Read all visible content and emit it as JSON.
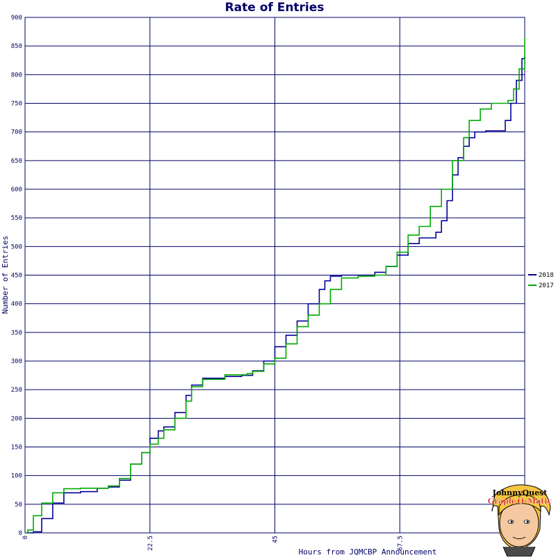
{
  "chart_data": {
    "type": "line",
    "title": "Rate of Entries",
    "xlabel": "Hours from JQMCBP Announcement",
    "ylabel": "Number of Entries",
    "xlim": [
      0,
      90
    ],
    "ylim": [
      0,
      900
    ],
    "x_ticks": [
      "0",
      "22.5",
      "45",
      "67.5",
      "90"
    ],
    "y_ticks": [
      "0",
      "50",
      "100",
      "150",
      "200",
      "250",
      "300",
      "350",
      "400",
      "450",
      "500",
      "550",
      "600",
      "650",
      "700",
      "750",
      "800",
      "850",
      "900"
    ],
    "grid": true,
    "legend_position": "right",
    "series": [
      {
        "name": "2018",
        "color": "#000099",
        "points": [
          [
            0,
            0
          ],
          [
            1.5,
            2
          ],
          [
            3,
            25
          ],
          [
            5,
            52
          ],
          [
            7,
            70
          ],
          [
            10,
            72
          ],
          [
            13,
            78
          ],
          [
            15,
            80
          ],
          [
            17,
            92
          ],
          [
            19,
            120
          ],
          [
            21,
            140
          ],
          [
            22.5,
            165
          ],
          [
            24,
            178
          ],
          [
            25,
            185
          ],
          [
            27,
            210
          ],
          [
            29,
            240
          ],
          [
            30,
            258
          ],
          [
            32,
            270
          ],
          [
            36,
            273
          ],
          [
            39,
            275
          ],
          [
            41,
            283
          ],
          [
            43,
            300
          ],
          [
            45,
            325
          ],
          [
            47,
            345
          ],
          [
            49,
            370
          ],
          [
            51,
            400
          ],
          [
            53,
            425
          ],
          [
            54,
            440
          ],
          [
            55,
            448
          ],
          [
            57,
            450
          ],
          [
            60,
            450
          ],
          [
            63,
            455
          ],
          [
            65,
            465
          ],
          [
            67,
            485
          ],
          [
            69,
            505
          ],
          [
            71,
            515
          ],
          [
            74,
            525
          ],
          [
            75,
            545
          ],
          [
            76,
            580
          ],
          [
            77,
            625
          ],
          [
            78,
            655
          ],
          [
            79,
            675
          ],
          [
            80,
            690
          ],
          [
            81,
            700
          ],
          [
            83,
            702
          ],
          [
            86,
            702
          ],
          [
            86.5,
            720
          ],
          [
            87.5,
            750
          ],
          [
            88.5,
            790
          ],
          [
            89.5,
            828
          ],
          [
            90,
            832
          ]
        ]
      },
      {
        "name": "2017",
        "color": "#00aa00",
        "points": [
          [
            0,
            0
          ],
          [
            0.5,
            5
          ],
          [
            1.5,
            30
          ],
          [
            3,
            52
          ],
          [
            5,
            70
          ],
          [
            7,
            77
          ],
          [
            10,
            78
          ],
          [
            13,
            78
          ],
          [
            15,
            82
          ],
          [
            17,
            95
          ],
          [
            19,
            120
          ],
          [
            21,
            140
          ],
          [
            22.5,
            155
          ],
          [
            24,
            165
          ],
          [
            25,
            180
          ],
          [
            27,
            200
          ],
          [
            29,
            230
          ],
          [
            30,
            255
          ],
          [
            32,
            268
          ],
          [
            36,
            276
          ],
          [
            40,
            278
          ],
          [
            41,
            282
          ],
          [
            43,
            295
          ],
          [
            45,
            305
          ],
          [
            47,
            330
          ],
          [
            49,
            360
          ],
          [
            51,
            380
          ],
          [
            53,
            400
          ],
          [
            55,
            425
          ],
          [
            57,
            445
          ],
          [
            60,
            448
          ],
          [
            63,
            450
          ],
          [
            65,
            465
          ],
          [
            67,
            490
          ],
          [
            69,
            520
          ],
          [
            71,
            535
          ],
          [
            73,
            570
          ],
          [
            75,
            600
          ],
          [
            77,
            650
          ],
          [
            79,
            690
          ],
          [
            80,
            720
          ],
          [
            82,
            740
          ],
          [
            84,
            750
          ],
          [
            87,
            755
          ],
          [
            88,
            775
          ],
          [
            89,
            810
          ],
          [
            90,
            865
          ]
        ]
      }
    ]
  },
  "logo": {
    "line1": "JohnnyQuest",
    "line2": "Graph-O-Matic"
  }
}
